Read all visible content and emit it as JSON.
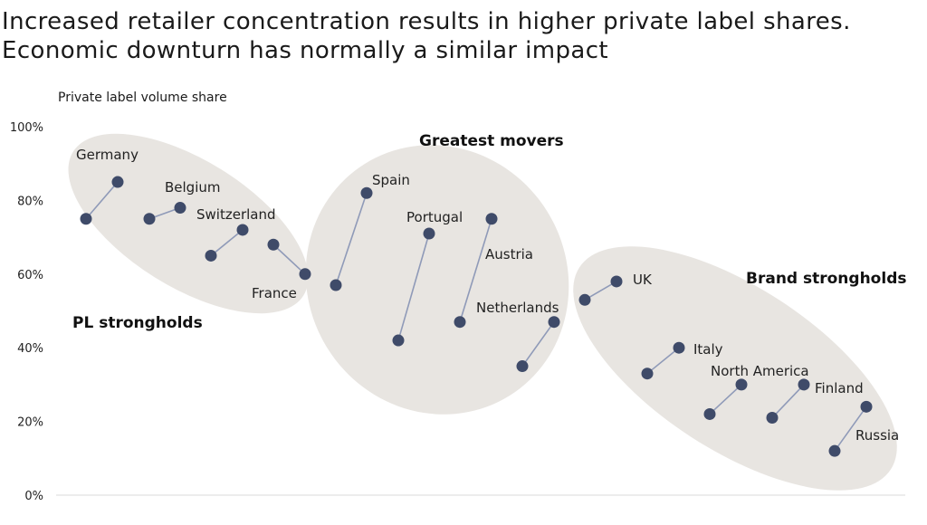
{
  "title_line1": "Increased retailer concentration results in higher private label shares.",
  "title_line2": "Economic downturn has normally a similar impact",
  "chart_data": {
    "type": "scatter",
    "ylabel": "Private label volume share",
    "ylim": [
      0,
      100
    ],
    "yticks": [
      "0%",
      "20%",
      "40%",
      "60%",
      "80%",
      "100%"
    ],
    "colors": {
      "marker": "#3f4b69",
      "line": "#8f9ab8",
      "ellipse": "#e8e5e1"
    },
    "groups": [
      {
        "name": "PL strongholds",
        "members": [
          "Germany",
          "Belgium",
          "Switzerland",
          "France"
        ]
      },
      {
        "name": "Greatest movers",
        "members": [
          "Spain",
          "Portugal",
          "Austria",
          "Netherlands"
        ]
      },
      {
        "name": "Brand strongholds",
        "members": [
          "UK",
          "Italy",
          "North America",
          "Finland",
          "Russia"
        ]
      }
    ],
    "series": [
      {
        "name": "Germany",
        "values": [
          75,
          85
        ]
      },
      {
        "name": "Belgium",
        "values": [
          75,
          78
        ]
      },
      {
        "name": "Switzerland",
        "values": [
          65,
          72
        ]
      },
      {
        "name": "France",
        "values": [
          68,
          60
        ]
      },
      {
        "name": "Spain",
        "values": [
          57,
          82
        ]
      },
      {
        "name": "Portugal",
        "values": [
          42,
          71
        ]
      },
      {
        "name": "Austria",
        "values": [
          47,
          75
        ]
      },
      {
        "name": "Netherlands",
        "values": [
          35,
          47
        ]
      },
      {
        "name": "UK",
        "values": [
          53,
          58
        ]
      },
      {
        "name": "Italy",
        "values": [
          33,
          40
        ]
      },
      {
        "name": "North America",
        "values": [
          22,
          30
        ]
      },
      {
        "name": "Finland",
        "values": [
          21,
          30
        ]
      },
      {
        "name": "Russia",
        "values": [
          12,
          24
        ]
      }
    ]
  }
}
